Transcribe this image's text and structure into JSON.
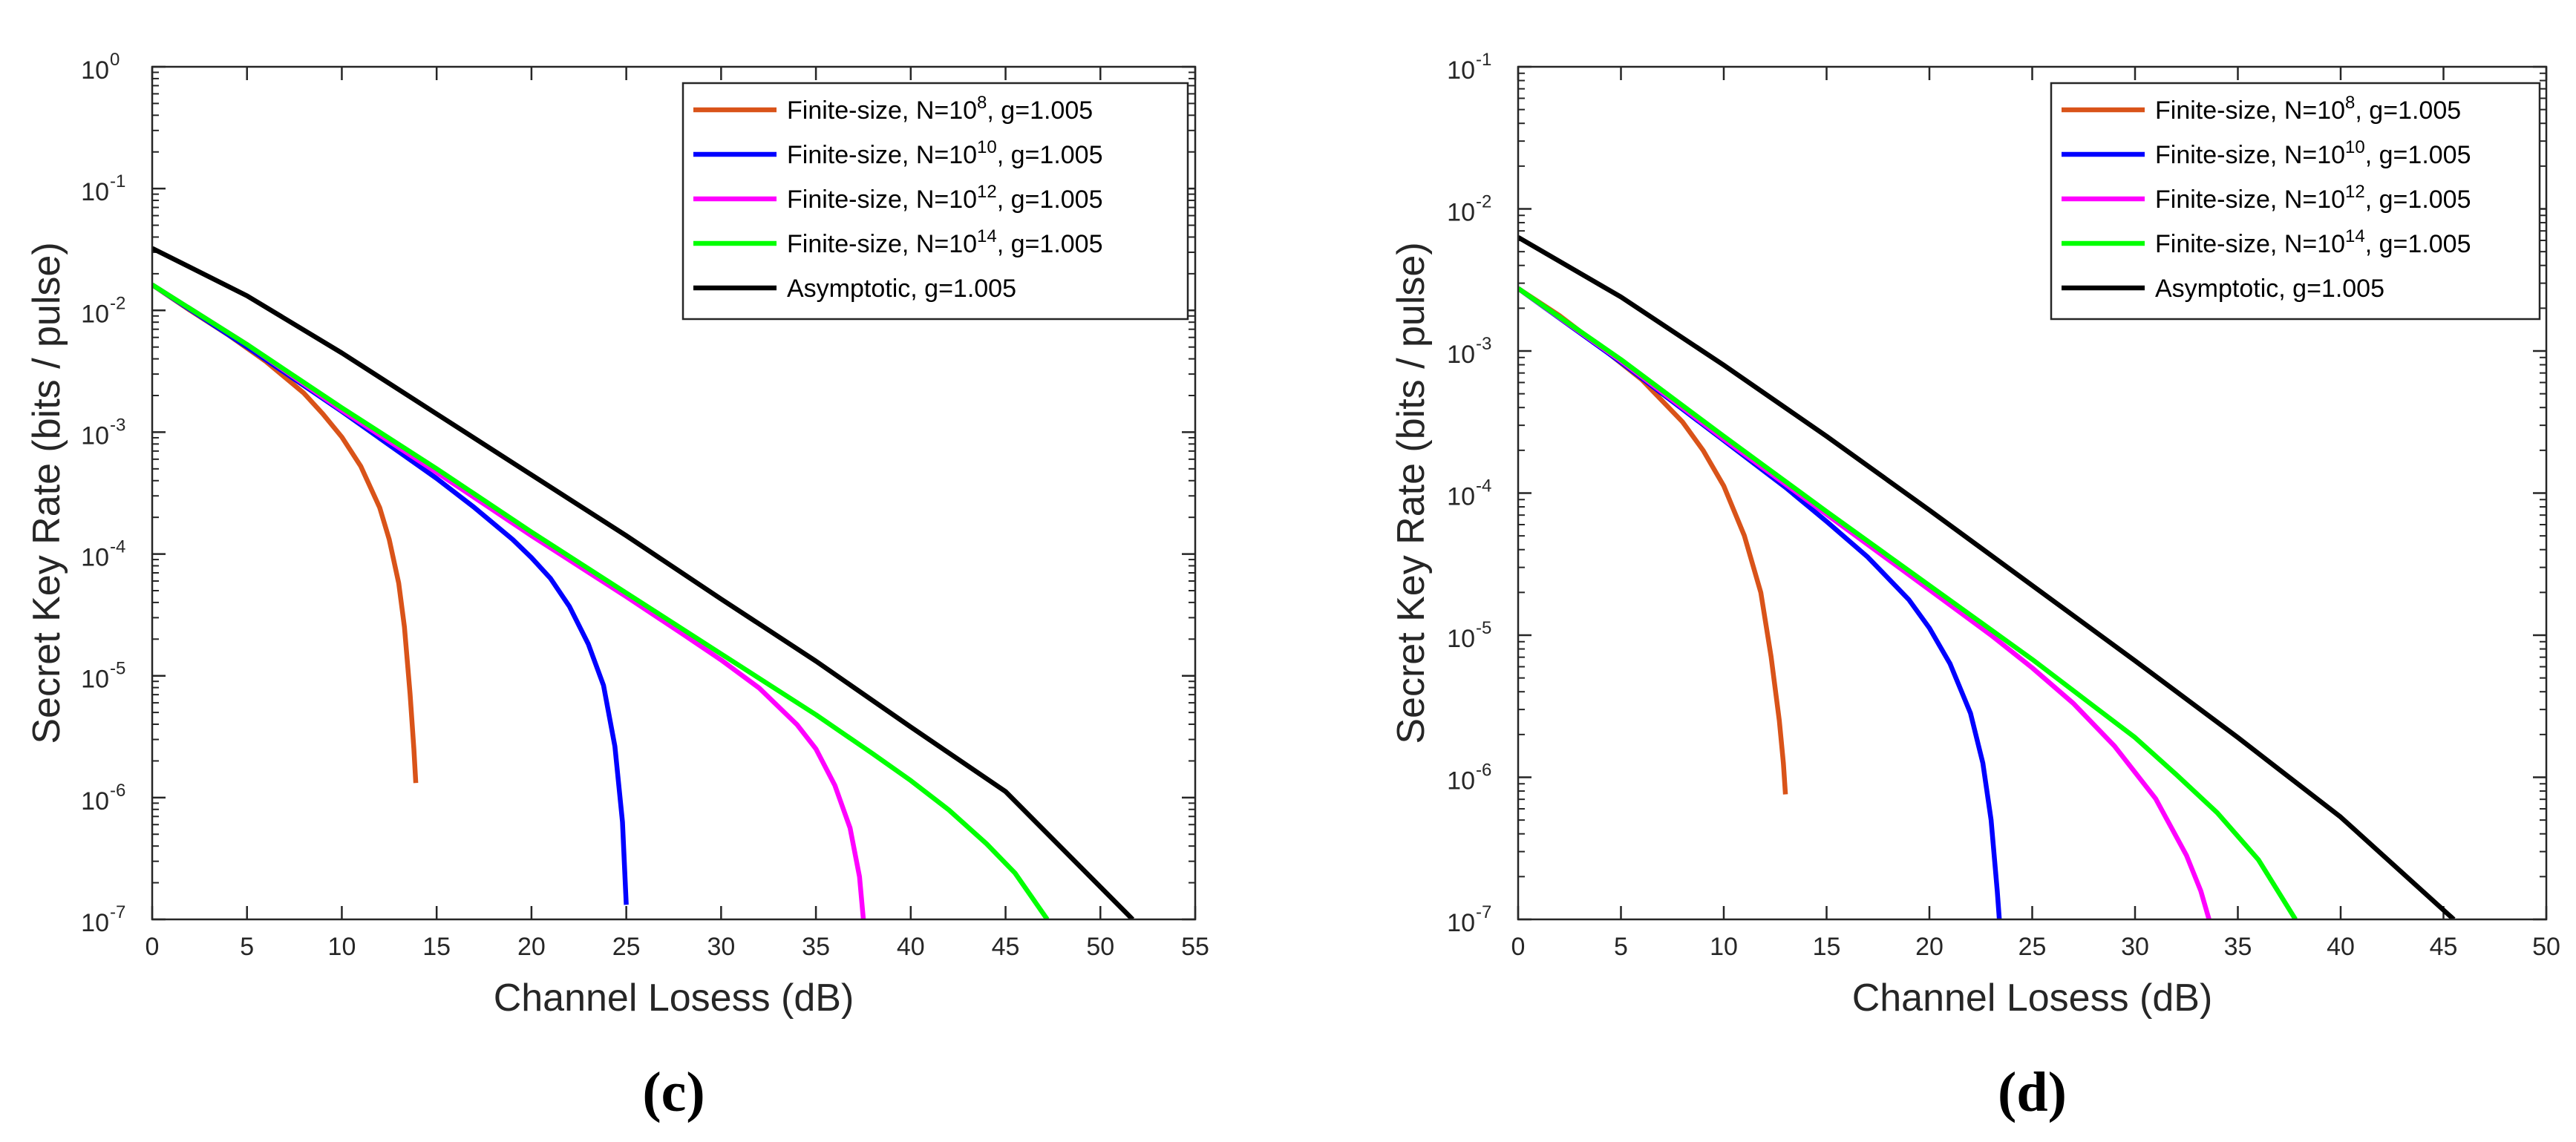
{
  "chart_data": [
    {
      "type": "line",
      "panel_label": "(c)",
      "xlabel": "Channel Losess (dB)",
      "ylabel": "Secret Key Rate (bits / pulse)",
      "yscale": "log",
      "xlim": [
        0,
        55
      ],
      "ylim_exp": [
        -7,
        0
      ],
      "xticks": [
        0,
        5,
        10,
        15,
        20,
        25,
        30,
        35,
        40,
        45,
        50,
        55
      ],
      "yticks": [
        {
          "base": "10",
          "exp": "0"
        },
        {
          "base": "10",
          "exp": "-1"
        },
        {
          "base": "10",
          "exp": "-2"
        },
        {
          "base": "10",
          "exp": "-3"
        },
        {
          "base": "10",
          "exp": "-4"
        },
        {
          "base": "10",
          "exp": "-5"
        },
        {
          "base": "10",
          "exp": "-6"
        },
        {
          "base": "10",
          "exp": "-7"
        }
      ],
      "legend_position": "top-right",
      "series": [
        {
          "name": "Finite-size, N=10^8, g=1.005",
          "legend_pre": "Finite-size, N=10",
          "legend_exp": "8",
          "legend_post": ", g=1.005",
          "color": "#D95319",
          "x": [
            0,
            2,
            4,
            6,
            8,
            9,
            10,
            11,
            12,
            12.5,
            13,
            13.3,
            13.6,
            13.8,
            13.9
          ],
          "log10y": [
            -1.79,
            -2.0,
            -2.2,
            -2.42,
            -2.68,
            -2.85,
            -3.04,
            -3.28,
            -3.62,
            -3.88,
            -4.24,
            -4.6,
            -5.15,
            -5.6,
            -5.88
          ]
        },
        {
          "name": "Finite-size, N=10^10, g=1.005",
          "legend_pre": "Finite-size, N=10",
          "legend_exp": "10",
          "legend_post": ", g=1.005",
          "color": "#0000FF",
          "x": [
            0,
            5,
            10,
            13,
            15,
            17,
            19,
            20,
            21,
            22,
            23,
            23.8,
            24.4,
            24.8,
            25.0
          ],
          "log10y": [
            -1.79,
            -2.3,
            -2.83,
            -3.16,
            -3.38,
            -3.62,
            -3.88,
            -4.03,
            -4.2,
            -4.43,
            -4.74,
            -5.08,
            -5.58,
            -6.2,
            -6.88
          ]
        },
        {
          "name": "Finite-size, N=10^12, g=1.005",
          "legend_pre": "Finite-size, N=10",
          "legend_exp": "12",
          "legend_post": ", g=1.005",
          "color": "#FF00FF",
          "x": [
            0,
            5,
            10,
            15,
            20,
            25,
            28,
            30,
            32,
            34,
            35,
            36,
            36.8,
            37.3,
            37.5
          ],
          "log10y": [
            -1.79,
            -2.28,
            -2.82,
            -3.33,
            -3.85,
            -4.35,
            -4.66,
            -4.87,
            -5.1,
            -5.4,
            -5.6,
            -5.9,
            -6.25,
            -6.65,
            -7.0
          ]
        },
        {
          "name": "Finite-size, N=10^14, g=1.005",
          "legend_pre": "Finite-size, N=10",
          "legend_exp": "14",
          "legend_post": ", g=1.005",
          "color": "#00FF00",
          "x": [
            0,
            5,
            10,
            15,
            20,
            25,
            30,
            35,
            38,
            40,
            42,
            44,
            45.5,
            47.2
          ],
          "log10y": [
            -1.79,
            -2.28,
            -2.8,
            -3.3,
            -3.82,
            -4.32,
            -4.82,
            -5.32,
            -5.64,
            -5.86,
            -6.1,
            -6.38,
            -6.62,
            -7.0
          ]
        },
        {
          "name": "Asymptotic, g=1.005",
          "legend_pre": "Asymptotic, g=1.005",
          "legend_exp": "",
          "legend_post": "",
          "color": "#000000",
          "x": [
            0,
            5,
            10,
            15,
            20,
            25,
            30,
            35,
            40,
            45,
            51.7
          ],
          "log10y": [
            -1.49,
            -1.88,
            -2.35,
            -2.85,
            -3.35,
            -3.85,
            -4.37,
            -4.88,
            -5.42,
            -5.95,
            -7.0
          ]
        }
      ]
    },
    {
      "type": "line",
      "panel_label": "(d)",
      "xlabel": "Channel Losess (dB)",
      "ylabel": "Secret Key Rate (bits / pulse)",
      "yscale": "log",
      "xlim": [
        0,
        50
      ],
      "ylim_exp": [
        -7,
        -1
      ],
      "xticks": [
        0,
        5,
        10,
        15,
        20,
        25,
        30,
        35,
        40,
        45,
        50
      ],
      "yticks": [
        {
          "base": "10",
          "exp": "-1"
        },
        {
          "base": "10",
          "exp": "-2"
        },
        {
          "base": "10",
          "exp": "-3"
        },
        {
          "base": "10",
          "exp": "-4"
        },
        {
          "base": "10",
          "exp": "-5"
        },
        {
          "base": "10",
          "exp": "-6"
        },
        {
          "base": "10",
          "exp": "-7"
        }
      ],
      "legend_position": "top-right",
      "series": [
        {
          "name": "Finite-size, N=10^8, g=1.005",
          "legend_pre": "Finite-size, N=10",
          "legend_exp": "8",
          "legend_post": ", g=1.005",
          "color": "#D95319",
          "x": [
            0,
            2,
            4,
            6,
            8,
            9,
            10,
            11,
            11.8,
            12.3,
            12.7,
            12.9,
            13.0
          ],
          "log10y": [
            -2.56,
            -2.75,
            -2.97,
            -3.2,
            -3.5,
            -3.7,
            -3.95,
            -4.3,
            -4.7,
            -5.15,
            -5.6,
            -5.9,
            -6.12
          ]
        },
        {
          "name": "Finite-size, N=10^10, g=1.005",
          "legend_pre": "Finite-size, N=10",
          "legend_exp": "10",
          "legend_post": ", g=1.005",
          "color": "#0000FF",
          "x": [
            0,
            5,
            10,
            13,
            15,
            17,
            19,
            20,
            21,
            22,
            22.6,
            23.0,
            23.3,
            23.4
          ],
          "log10y": [
            -2.56,
            -3.08,
            -3.63,
            -3.96,
            -4.2,
            -4.45,
            -4.75,
            -4.95,
            -5.2,
            -5.55,
            -5.9,
            -6.3,
            -6.8,
            -7.0
          ]
        },
        {
          "name": "Finite-size, N=10^12, g=1.005",
          "legend_pre": "Finite-size, N=10",
          "legend_exp": "12",
          "legend_post": ", g=1.005",
          "color": "#FF00FF",
          "x": [
            0,
            5,
            10,
            15,
            20,
            23,
            25,
            27,
            29,
            31,
            32.5,
            33.2,
            33.6
          ],
          "log10y": [
            -2.56,
            -3.07,
            -3.62,
            -4.15,
            -4.68,
            -5.0,
            -5.23,
            -5.48,
            -5.78,
            -6.15,
            -6.55,
            -6.8,
            -7.0
          ]
        },
        {
          "name": "Finite-size, N=10^14, g=1.005",
          "legend_pre": "Finite-size, N=10",
          "legend_exp": "14",
          "legend_post": ", g=1.005",
          "color": "#00FF00",
          "x": [
            0,
            5,
            10,
            15,
            20,
            25,
            28,
            30,
            32,
            34,
            36,
            37.8
          ],
          "log10y": [
            -2.56,
            -3.06,
            -3.6,
            -4.13,
            -4.65,
            -5.17,
            -5.5,
            -5.72,
            -5.98,
            -6.25,
            -6.58,
            -7.0
          ]
        },
        {
          "name": "Asymptotic, g=1.005",
          "legend_pre": "Asymptotic, g=1.005",
          "legend_exp": "",
          "legend_post": "",
          "color": "#000000",
          "x": [
            0,
            5,
            10,
            15,
            20,
            25,
            30,
            35,
            40,
            45.5
          ],
          "log10y": [
            -2.2,
            -2.62,
            -3.1,
            -3.6,
            -4.12,
            -4.65,
            -5.18,
            -5.72,
            -6.28,
            -7.0
          ]
        }
      ]
    }
  ]
}
